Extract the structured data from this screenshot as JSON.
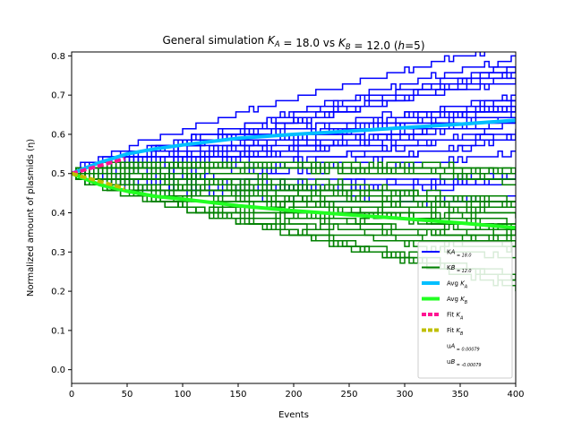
{
  "chart_data": {
    "type": "line",
    "title_parts": [
      "General simulation ",
      "K",
      "A",
      " = 18.0 vs ",
      "K",
      "B",
      " = 12.0 (",
      "h",
      "=5)"
    ],
    "xlabel": "Events",
    "ylabel": "Normalized amount of plasmids (η)",
    "xlim": [
      0,
      400
    ],
    "ylim": [
      -0.035,
      0.81
    ],
    "xticks": [
      0,
      50,
      100,
      150,
      200,
      250,
      300,
      350,
      400
    ],
    "yticks": [
      0.0,
      0.1,
      0.2,
      0.3,
      0.4,
      0.5,
      0.6,
      0.7,
      0.8
    ],
    "grid": false,
    "legend_position": "lower right",
    "colors": {
      "ka": "#0000ff",
      "kb": "#008000",
      "avg_ka": "#00bfff",
      "avg_kb": "#22ff22",
      "fit_ka": "#ff1493",
      "fit_kb": "#bfbf00"
    },
    "series": [
      {
        "name": "K_A = 18.0",
        "label_parts": [
          "K",
          "A",
          " = 18.0"
        ],
        "kind": "simulations",
        "color_key": "ka",
        "center_start": 0.5,
        "center_end": 0.64,
        "spread_max": 0.12
      },
      {
        "name": "K_B = 12.0",
        "label_parts": [
          "K",
          "B",
          " = 12.0"
        ],
        "kind": "simulations",
        "color_key": "kb",
        "center_start": 0.5,
        "center_end": 0.36,
        "spread_max": 0.12
      },
      {
        "name": "Avg K_A",
        "label_parts": [
          "Avg ",
          "K",
          "A",
          ""
        ],
        "kind": "line",
        "color_key": "avg_ka",
        "x": [
          0,
          25,
          50,
          75,
          100,
          150,
          200,
          250,
          300,
          350,
          400
        ],
        "y": [
          0.5,
          0.528,
          0.55,
          0.563,
          0.573,
          0.59,
          0.6,
          0.608,
          0.617,
          0.626,
          0.636
        ]
      },
      {
        "name": "Avg K_B",
        "label_parts": [
          "Avg ",
          "K",
          "B",
          ""
        ],
        "kind": "line",
        "color_key": "avg_kb",
        "x": [
          0,
          25,
          50,
          75,
          100,
          150,
          200,
          250,
          300,
          350,
          400
        ],
        "y": [
          0.5,
          0.472,
          0.455,
          0.442,
          0.435,
          0.418,
          0.405,
          0.395,
          0.385,
          0.374,
          0.362
        ]
      },
      {
        "name": "Fit K_A",
        "label_parts": [
          "Fit ",
          "K",
          "A",
          ""
        ],
        "kind": "dashed",
        "color_key": "fit_ka",
        "x": [
          0,
          48
        ],
        "y": [
          0.5,
          0.538
        ]
      },
      {
        "name": "Fit K_B",
        "label_parts": [
          "Fit ",
          "K",
          "B",
          ""
        ],
        "kind": "dashed",
        "color_key": "fit_kb",
        "x": [
          0,
          48
        ],
        "y": [
          0.5,
          0.462
        ]
      }
    ],
    "legend_text": [
      {
        "parts": [
          "u",
          "A",
          " = 0.00079"
        ]
      },
      {
        "parts": [
          "u",
          "B",
          " = -0.00079"
        ]
      }
    ]
  }
}
